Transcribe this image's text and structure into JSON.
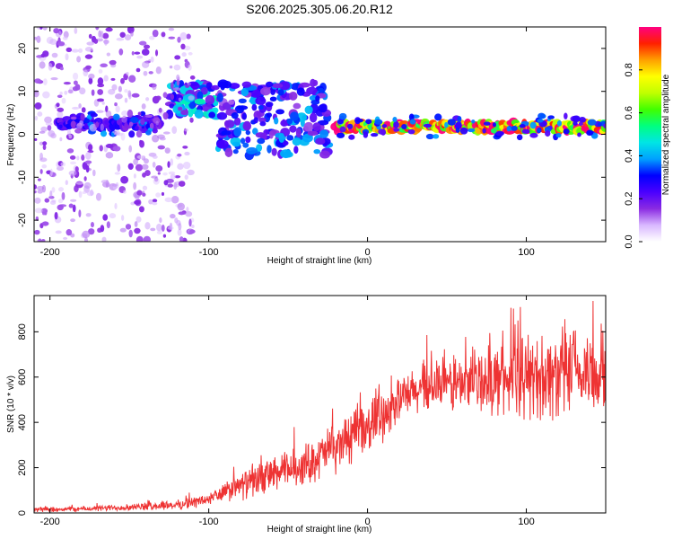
{
  "title": "S206.2025.305.06.20.R12",
  "chart_data": [
    {
      "type": "heatmap",
      "name": "spectrogram",
      "xlabel": "Height of straight line (km)",
      "ylabel": "Frequency (Hz)",
      "xlim": [
        -210,
        150
      ],
      "ylim": [
        -25,
        25
      ],
      "xticks": [
        -200,
        -100,
        0,
        100
      ],
      "xtick_labels": [
        "-200",
        "-100",
        "0",
        "100"
      ],
      "yticks": [
        -20,
        -10,
        0,
        10,
        20
      ],
      "ytick_labels": [
        "-20",
        "-10",
        "0",
        "10",
        "20"
      ],
      "colorbar": {
        "label": "Normalized spectral amplitude",
        "range": [
          0,
          1
        ],
        "ticks": [
          0.0,
          0.2,
          0.4,
          0.6,
          0.8
        ],
        "tick_labels": [
          "0.0",
          "0.2",
          "0.4",
          "0.6",
          "0.8"
        ]
      },
      "features": [
        {
          "kind": "band",
          "x_start": -195,
          "x_end": -130,
          "freq": 2.5,
          "amplitude": 0.25
        },
        {
          "kind": "band",
          "x_start": -20,
          "x_end": 150,
          "freq": 1.8,
          "amplitude": 0.9
        },
        {
          "kind": "cluster",
          "x_start": -125,
          "x_end": -95,
          "freq_range": [
            4,
            12
          ],
          "amplitude": 0.3
        },
        {
          "kind": "cluster",
          "x_start": -95,
          "x_end": -25,
          "freq_range": [
            -5,
            12
          ],
          "amplitude": 0.25
        },
        {
          "kind": "noise",
          "x_start": -210,
          "x_end": -110,
          "freq_range": [
            -25,
            25
          ],
          "amplitude": 0.05
        }
      ]
    },
    {
      "type": "line",
      "name": "snr",
      "xlabel": "Height of straight line (km)",
      "ylabel": "SNR (10 * v/v)",
      "xlim": [
        -210,
        150
      ],
      "ylim": [
        0,
        960
      ],
      "xticks": [
        -200,
        -100,
        0,
        100
      ],
      "xtick_labels": [
        "-200",
        "-100",
        "0",
        "100"
      ],
      "yticks": [
        0,
        200,
        400,
        600,
        800
      ],
      "ytick_labels": [
        "0",
        "200",
        "400",
        "600",
        "800"
      ],
      "color": "#ee3333",
      "series_profile": {
        "x": [
          -210,
          -180,
          -150,
          -120,
          -100,
          -80,
          -60,
          -40,
          -20,
          0,
          20,
          40,
          60,
          80,
          100,
          120,
          150
        ],
        "mean": [
          15,
          18,
          25,
          35,
          60,
          120,
          170,
          210,
          290,
          380,
          500,
          560,
          570,
          590,
          600,
          610,
          620
        ],
        "spread": [
          10,
          12,
          15,
          20,
          30,
          60,
          80,
          90,
          110,
          120,
          100,
          110,
          130,
          150,
          180,
          200,
          190
        ]
      }
    }
  ],
  "colors": {
    "colormap": [
      "#ffffff",
      "#d9b8ff",
      "#8a2be2",
      "#4a00ff",
      "#0000ff",
      "#00a0ff",
      "#00e5e5",
      "#00ff80",
      "#40ff00",
      "#c0ff00",
      "#ffff00",
      "#ffa000",
      "#ff2000",
      "#ff0080"
    ],
    "line": "#ee3333"
  }
}
